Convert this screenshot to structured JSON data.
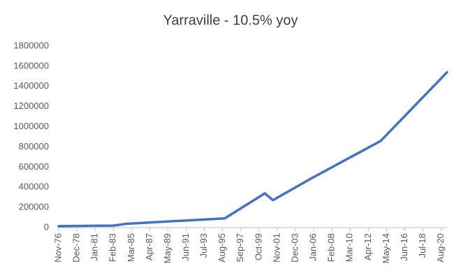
{
  "chart_data": {
    "type": "line",
    "title": "Yarraville - 10.5% yoy",
    "x": [
      "1976-11",
      "1983-02",
      "1984-08",
      "1995-11",
      "2000-06",
      "2001-05",
      "2005-09",
      "2013-09",
      "2021-04"
    ],
    "values": [
      15000,
      20000,
      38000,
      92000,
      340000,
      272000,
      485000,
      860000,
      1540000
    ],
    "color": "#4472c4",
    "xlim": [
      "1976-11",
      "2021-04"
    ],
    "xticks": [
      {
        "value": "1976-11",
        "label": "Nov-76"
      },
      {
        "value": "1978-12",
        "label": "Dec-78"
      },
      {
        "value": "1981-01",
        "label": "Jan-81"
      },
      {
        "value": "1983-02",
        "label": "Feb-83"
      },
      {
        "value": "1985-03",
        "label": "Mar-85"
      },
      {
        "value": "1987-04",
        "label": "Apr-87"
      },
      {
        "value": "1989-05",
        "label": "May-89"
      },
      {
        "value": "1991-06",
        "label": "Jun-91"
      },
      {
        "value": "1993-07",
        "label": "Jul-93"
      },
      {
        "value": "1995-08",
        "label": "Aug-95"
      },
      {
        "value": "1997-09",
        "label": "Sep-97"
      },
      {
        "value": "1999-10",
        "label": "Oct-99"
      },
      {
        "value": "2001-11",
        "label": "Nov-01"
      },
      {
        "value": "2003-12",
        "label": "Dec-03"
      },
      {
        "value": "2006-01",
        "label": "Jan-06"
      },
      {
        "value": "2008-02",
        "label": "Feb-08"
      },
      {
        "value": "2010-03",
        "label": "Mar-10"
      },
      {
        "value": "2012-04",
        "label": "Apr-12"
      },
      {
        "value": "2014-05",
        "label": "May-14"
      },
      {
        "value": "2016-06",
        "label": "Jun-16"
      },
      {
        "value": "2018-07",
        "label": "Jul-18"
      },
      {
        "value": "2020-08",
        "label": "Aug-20"
      }
    ],
    "ylim": [
      0,
      1800000
    ],
    "yticks": [
      0,
      200000,
      400000,
      600000,
      800000,
      1000000,
      1200000,
      1400000,
      1600000,
      1800000
    ],
    "grid": false
  }
}
